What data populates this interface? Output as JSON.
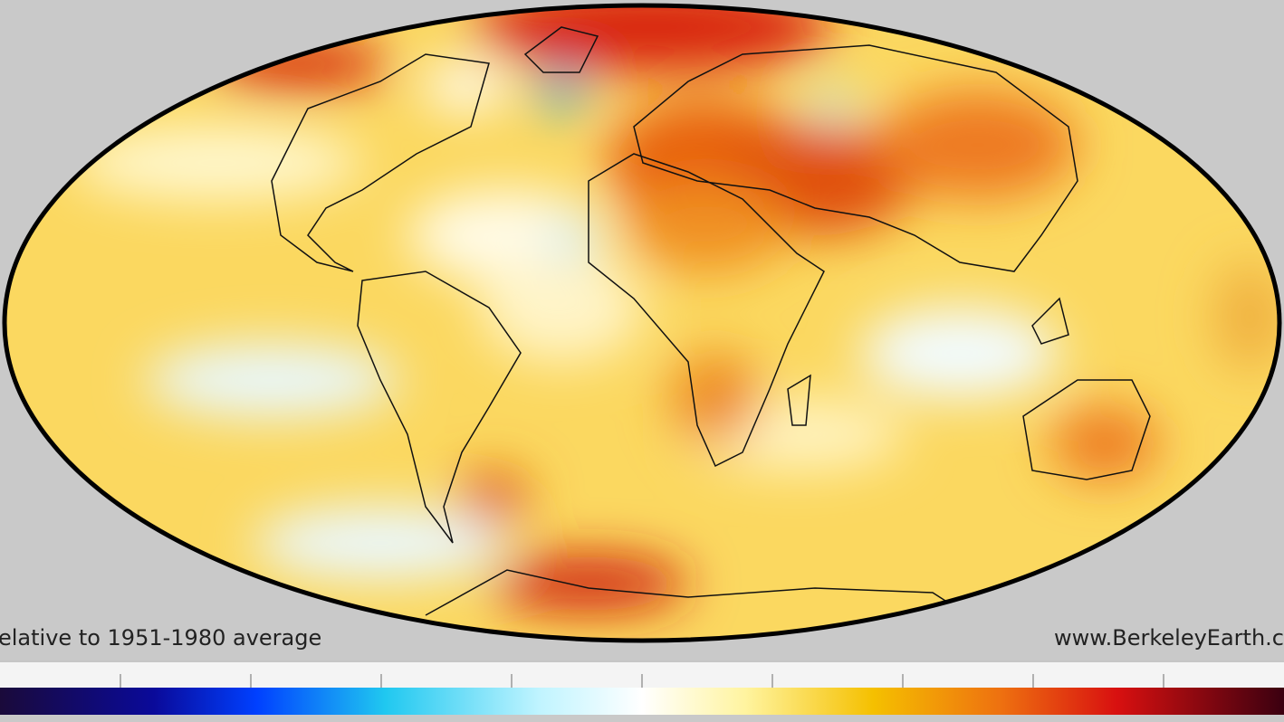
{
  "caption_left": "elative to 1951-1980 average",
  "caption_right": "www.BerkeleyEarth.c"
}
